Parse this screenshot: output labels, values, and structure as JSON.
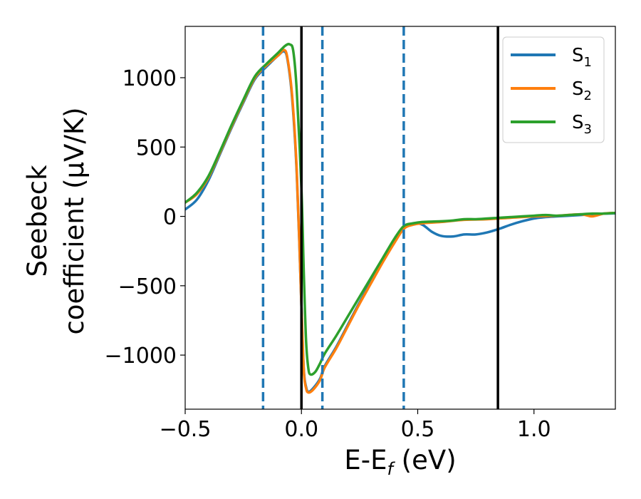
{
  "chart_data": {
    "type": "line",
    "xlabel": "E-E",
    "xlabel_sub": "f",
    "xlabel_unit": " (eV)",
    "ylabel_line1": "Seebeck",
    "ylabel_line2": "coefficient  (μV/K)",
    "xlim": [
      -0.5,
      1.35
    ],
    "ylim": [
      -1390,
      1370
    ],
    "x_ticks": [
      -0.5,
      0.0,
      0.5,
      1.0
    ],
    "x_tick_labels": [
      "−0.5",
      "0.0",
      "0.5",
      "1.0"
    ],
    "y_ticks": [
      1000,
      500,
      0,
      -500,
      -1000
    ],
    "y_tick_labels": [
      "1000",
      "500",
      "0",
      "−500",
      "−1000"
    ],
    "grid": false,
    "legend_position": "top-right",
    "vertical_lines": [
      {
        "x": -0.165,
        "style": "dashed",
        "color": "#1f77b4"
      },
      {
        "x": 0.0,
        "style": "solid",
        "color": "#000000"
      },
      {
        "x": 0.09,
        "style": "dashed",
        "color": "#1f77b4"
      },
      {
        "x": 0.44,
        "style": "dashed",
        "color": "#1f77b4"
      },
      {
        "x": 0.845,
        "style": "solid",
        "color": "#000000"
      }
    ],
    "series": [
      {
        "name": "S",
        "subscript": "1",
        "color": "#1f77b4",
        "points": [
          [
            -0.5,
            50
          ],
          [
            -0.45,
            120
          ],
          [
            -0.4,
            260
          ],
          [
            -0.35,
            450
          ],
          [
            -0.3,
            640
          ],
          [
            -0.25,
            820
          ],
          [
            -0.2,
            990
          ],
          [
            -0.15,
            1080
          ],
          [
            -0.1,
            1160
          ],
          [
            -0.075,
            1190
          ],
          [
            -0.06,
            1130
          ],
          [
            -0.04,
            850
          ],
          [
            -0.02,
            300
          ],
          [
            0.0,
            -650
          ],
          [
            0.01,
            -1100
          ],
          [
            0.02,
            -1230
          ],
          [
            0.03,
            -1265
          ],
          [
            0.05,
            -1240
          ],
          [
            0.08,
            -1170
          ],
          [
            0.1,
            -1080
          ],
          [
            0.15,
            -940
          ],
          [
            0.2,
            -780
          ],
          [
            0.25,
            -620
          ],
          [
            0.3,
            -470
          ],
          [
            0.35,
            -320
          ],
          [
            0.4,
            -180
          ],
          [
            0.44,
            -80
          ],
          [
            0.48,
            -50
          ],
          [
            0.52,
            -60
          ],
          [
            0.56,
            -110
          ],
          [
            0.6,
            -140
          ],
          [
            0.65,
            -145
          ],
          [
            0.7,
            -130
          ],
          [
            0.75,
            -130
          ],
          [
            0.8,
            -115
          ],
          [
            0.85,
            -90
          ],
          [
            0.9,
            -60
          ],
          [
            0.95,
            -35
          ],
          [
            1.0,
            -15
          ],
          [
            1.05,
            -5
          ],
          [
            1.1,
            0
          ],
          [
            1.15,
            5
          ],
          [
            1.2,
            10
          ],
          [
            1.25,
            15
          ],
          [
            1.3,
            20
          ],
          [
            1.35,
            22
          ]
        ]
      },
      {
        "name": "S",
        "subscript": "2",
        "color": "#ff7f0e",
        "points": [
          [
            -0.5,
            100
          ],
          [
            -0.45,
            160
          ],
          [
            -0.4,
            280
          ],
          [
            -0.35,
            460
          ],
          [
            -0.3,
            650
          ],
          [
            -0.25,
            830
          ],
          [
            -0.2,
            1000
          ],
          [
            -0.15,
            1090
          ],
          [
            -0.1,
            1160
          ],
          [
            -0.075,
            1200
          ],
          [
            -0.06,
            1140
          ],
          [
            -0.04,
            870
          ],
          [
            -0.02,
            320
          ],
          [
            0.0,
            -650
          ],
          [
            0.01,
            -1110
          ],
          [
            0.02,
            -1240
          ],
          [
            0.03,
            -1270
          ],
          [
            0.05,
            -1250
          ],
          [
            0.08,
            -1180
          ],
          [
            0.1,
            -1090
          ],
          [
            0.15,
            -950
          ],
          [
            0.2,
            -790
          ],
          [
            0.25,
            -630
          ],
          [
            0.3,
            -480
          ],
          [
            0.35,
            -330
          ],
          [
            0.4,
            -190
          ],
          [
            0.44,
            -90
          ],
          [
            0.48,
            -60
          ],
          [
            0.52,
            -50
          ],
          [
            0.6,
            -40
          ],
          [
            0.7,
            -25
          ],
          [
            0.8,
            -20
          ],
          [
            0.9,
            -10
          ],
          [
            1.0,
            0
          ],
          [
            1.1,
            5
          ],
          [
            1.2,
            15
          ],
          [
            1.25,
            0
          ],
          [
            1.3,
            20
          ],
          [
            1.35,
            25
          ]
        ]
      },
      {
        "name": "S",
        "subscript": "3",
        "color": "#2ca02c",
        "points": [
          [
            -0.5,
            100
          ],
          [
            -0.45,
            170
          ],
          [
            -0.4,
            290
          ],
          [
            -0.35,
            470
          ],
          [
            -0.3,
            660
          ],
          [
            -0.25,
            840
          ],
          [
            -0.2,
            1010
          ],
          [
            -0.15,
            1100
          ],
          [
            -0.1,
            1180
          ],
          [
            -0.07,
            1230
          ],
          [
            -0.05,
            1240
          ],
          [
            -0.035,
            1190
          ],
          [
            -0.02,
            900
          ],
          [
            0.0,
            200
          ],
          [
            0.01,
            -400
          ],
          [
            0.02,
            -900
          ],
          [
            0.03,
            -1100
          ],
          [
            0.04,
            -1140
          ],
          [
            0.06,
            -1120
          ],
          [
            0.08,
            -1060
          ],
          [
            0.1,
            -990
          ],
          [
            0.15,
            -860
          ],
          [
            0.2,
            -720
          ],
          [
            0.25,
            -580
          ],
          [
            0.3,
            -440
          ],
          [
            0.35,
            -300
          ],
          [
            0.4,
            -160
          ],
          [
            0.44,
            -70
          ],
          [
            0.48,
            -50
          ],
          [
            0.52,
            -40
          ],
          [
            0.6,
            -35
          ],
          [
            0.65,
            -30
          ],
          [
            0.7,
            -20
          ],
          [
            0.75,
            -20
          ],
          [
            0.8,
            -15
          ],
          [
            0.85,
            -10
          ],
          [
            0.9,
            -5
          ],
          [
            0.95,
            0
          ],
          [
            1.0,
            5
          ],
          [
            1.05,
            10
          ],
          [
            1.1,
            5
          ],
          [
            1.15,
            10
          ],
          [
            1.2,
            15
          ],
          [
            1.25,
            20
          ],
          [
            1.3,
            20
          ],
          [
            1.35,
            25
          ]
        ]
      }
    ]
  }
}
